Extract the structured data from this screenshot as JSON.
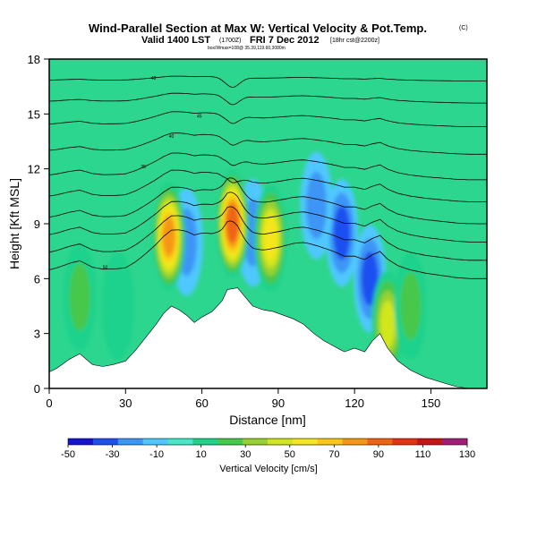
{
  "chart_data": {
    "type": "heatmap",
    "title": "Wind-Parallel Section at Max W: Vertical Velocity & Pot.Temp.",
    "title_mark": "(C)",
    "subtitle_valid": "Valid 1400 LST",
    "subtitle_utc": "(1700Z)",
    "subtitle_date": "FRI 7 Dec 2012",
    "subtitle_run": "[18hr cst@2200z]",
    "subtitle_loc": "box/Wmax=108@ 35.39,119.60,3080m",
    "xlabel": "Distance [nm]",
    "ylabel": "Height [Kft MSL]",
    "xlim": [
      0,
      172
    ],
    "ylim": [
      0,
      18
    ],
    "xticks": [
      0,
      30,
      60,
      90,
      120,
      150
    ],
    "yticks": [
      0,
      3,
      6,
      9,
      12,
      15,
      18
    ],
    "colorbar": {
      "label": "Vertical Velocity [cm/s]",
      "ticks": [
        -50,
        -30,
        -10,
        10,
        30,
        50,
        70,
        90,
        110,
        130
      ],
      "colors": [
        "#1414d2",
        "#1e50f0",
        "#3c96f5",
        "#50c8ff",
        "#46e8c8",
        "#1ed28c",
        "#46c84b",
        "#96d232",
        "#d2e61e",
        "#f5e61e",
        "#fac814",
        "#f59614",
        "#ef6414",
        "#e63214",
        "#c81414",
        "#a01e78"
      ]
    },
    "terrain": [
      [
        0,
        0.9
      ],
      [
        3,
        1.1
      ],
      [
        8,
        1.6
      ],
      [
        12,
        1.9
      ],
      [
        17,
        1.3
      ],
      [
        21,
        1.2
      ],
      [
        25,
        1.3
      ],
      [
        30,
        1.5
      ],
      [
        34,
        2.1
      ],
      [
        38,
        2.8
      ],
      [
        42,
        3.5
      ],
      [
        45,
        4.1
      ],
      [
        48,
        4.5
      ],
      [
        51,
        4.3
      ],
      [
        54,
        4.0
      ],
      [
        57,
        3.6
      ],
      [
        60,
        3.9
      ],
      [
        64,
        4.2
      ],
      [
        68,
        4.8
      ],
      [
        70,
        5.4
      ],
      [
        74,
        5.5
      ],
      [
        77,
        5.0
      ],
      [
        80,
        4.5
      ],
      [
        84,
        4.3
      ],
      [
        88,
        4.2
      ],
      [
        92,
        4.0
      ],
      [
        96,
        3.8
      ],
      [
        100,
        3.5
      ],
      [
        104,
        3.0
      ],
      [
        108,
        2.6
      ],
      [
        112,
        2.3
      ],
      [
        116,
        2.0
      ],
      [
        120,
        2.2
      ],
      [
        124,
        2.0
      ],
      [
        127,
        2.6
      ],
      [
        130,
        3.0
      ],
      [
        133,
        2.2
      ],
      [
        137,
        1.5
      ],
      [
        142,
        1.0
      ],
      [
        148,
        0.6
      ],
      [
        155,
        0.3
      ],
      [
        160,
        0.1
      ],
      [
        165,
        0.0
      ],
      [
        172,
        0.0
      ]
    ],
    "updrafts": [
      {
        "x": 47,
        "z": 8.3,
        "peak_cm_s": 95
      },
      {
        "x": 72,
        "z": 9.0,
        "peak_cm_s": 110
      },
      {
        "x": 87,
        "z": 8.2,
        "peak_cm_s": 70
      },
      {
        "x": 12,
        "z": 5.0,
        "peak_cm_s": 35
      },
      {
        "x": 27,
        "z": 4.5,
        "peak_cm_s": 25
      },
      {
        "x": 133,
        "z": 3.5,
        "peak_cm_s": 60
      },
      {
        "x": 142,
        "z": 4.5,
        "peak_cm_s": 30
      }
    ],
    "downdrafts": [
      {
        "x": 54,
        "z": 8.0,
        "peak_cm_s": -20
      },
      {
        "x": 80,
        "z": 8.5,
        "peak_cm_s": -20
      },
      {
        "x": 115,
        "z": 8.5,
        "peak_cm_s": -35
      },
      {
        "x": 105,
        "z": 10.0,
        "peak_cm_s": -25
      },
      {
        "x": 126,
        "z": 6.0,
        "peak_cm_s": -30
      }
    ],
    "isentropes": [
      {
        "level": 6.0,
        "label": "50"
      },
      {
        "level": 7.0,
        "label": ""
      },
      {
        "level": 8.0,
        "label": ""
      },
      {
        "level": 9.0,
        "label": ""
      },
      {
        "level": 10.2,
        "label": ""
      },
      {
        "level": 11.4,
        "label": "35"
      },
      {
        "level": 12.8,
        "label": "40"
      },
      {
        "level": 14.3,
        "label": "45"
      },
      {
        "level": 15.6,
        "label": ""
      },
      {
        "level": 16.8,
        "label": "48"
      }
    ]
  }
}
